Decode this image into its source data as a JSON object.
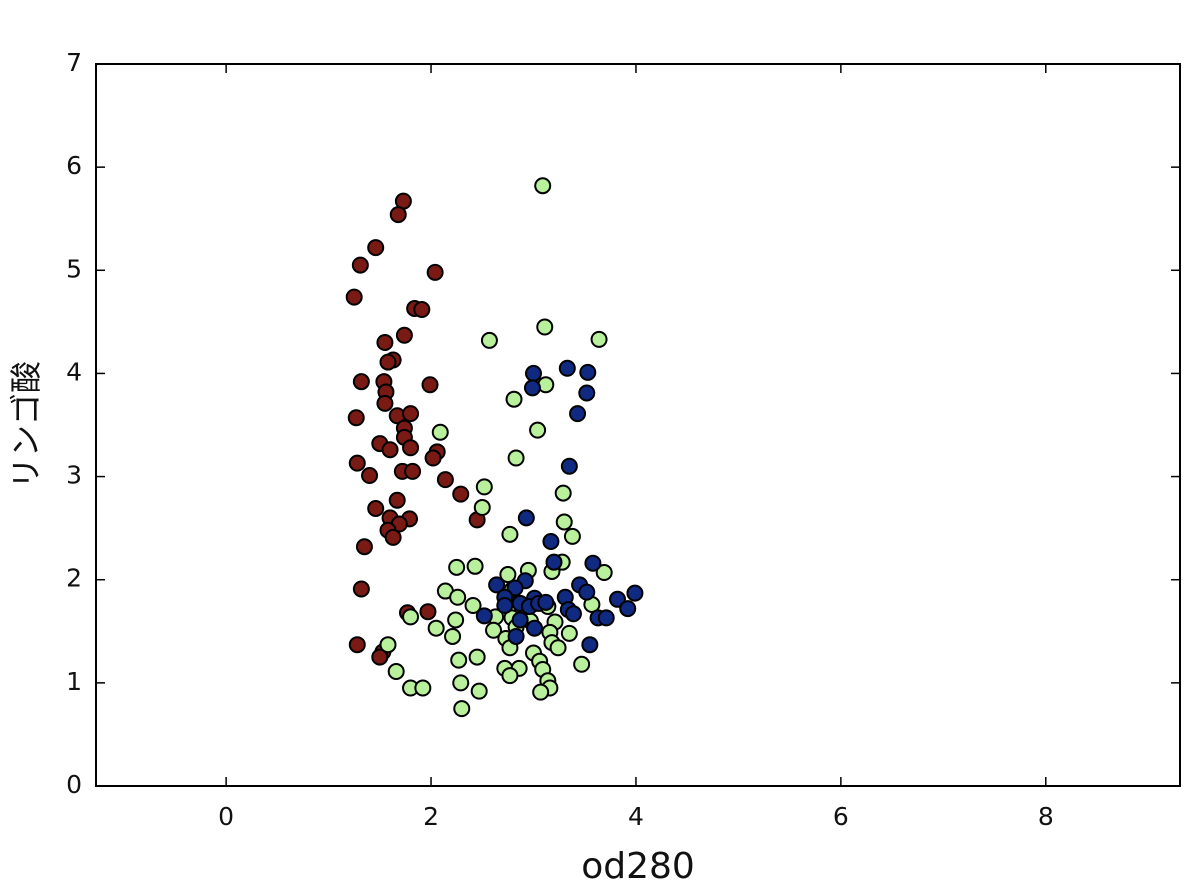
{
  "chart_data": {
    "type": "scatter",
    "xlabel": "od280",
    "ylabel": "リンゴ酸",
    "xlim": [
      -1.27,
      9.31
    ],
    "ylim": [
      0,
      7
    ],
    "xticks": [
      0,
      2,
      4,
      6,
      8
    ],
    "yticks": [
      0,
      1,
      2,
      3,
      4,
      5,
      6,
      7
    ],
    "grid": false,
    "series": [
      {
        "color": "#7a1a14",
        "x": [
          1.73,
          1.68,
          1.46,
          1.31,
          2.04,
          1.25,
          1.84,
          1.91,
          1.55,
          1.74,
          1.63,
          1.58,
          1.32,
          1.54,
          1.99,
          1.56,
          1.55,
          1.27,
          1.67,
          1.8,
          1.74,
          1.74,
          1.5,
          1.6,
          1.8,
          2.06,
          1.28,
          2.02,
          1.72,
          1.82,
          1.4,
          2.14,
          2.29,
          1.67,
          1.46,
          1.6,
          1.79,
          2.45,
          1.69,
          1.58,
          1.63,
          1.35,
          1.32,
          1.77,
          1.97,
          1.28,
          1.53,
          1.5
        ],
        "values": [
          5.67,
          5.54,
          5.22,
          5.05,
          4.98,
          4.74,
          4.63,
          4.62,
          4.3,
          4.37,
          4.13,
          4.11,
          3.92,
          3.92,
          3.89,
          3.82,
          3.71,
          3.57,
          3.59,
          3.61,
          3.47,
          3.38,
          3.32,
          3.26,
          3.28,
          3.24,
          3.13,
          3.18,
          3.05,
          3.05,
          3.01,
          2.97,
          2.83,
          2.77,
          2.69,
          2.6,
          2.59,
          2.58,
          2.54,
          2.48,
          2.41,
          2.32,
          1.91,
          1.68,
          1.69,
          1.37,
          1.3,
          1.25
        ]
      },
      {
        "color": "#b8f09c",
        "x": [
          3.09,
          3.11,
          2.57,
          3.64,
          3.12,
          2.81,
          2.09,
          3.04,
          2.83,
          2.52,
          3.29,
          2.5,
          3.3,
          3.38,
          2.77,
          3.28,
          2.25,
          2.43,
          3.69,
          3.18,
          2.75,
          2.95,
          2.14,
          2.26,
          2.79,
          2.41,
          3.57,
          3.14,
          1.8,
          2.24,
          2.63,
          2.79,
          2.97,
          3.21,
          2.05,
          2.61,
          2.83,
          3.16,
          2.21,
          2.73,
          3.35,
          3.18,
          3.24,
          1.58,
          2.77,
          3.0,
          3.06,
          2.27,
          2.45,
          1.66,
          2.72,
          2.86,
          3.09,
          3.47,
          2.77,
          3.14,
          2.29,
          3.16,
          3.07,
          1.8,
          1.92,
          2.47,
          2.3
        ],
        "values": [
          5.82,
          4.45,
          4.32,
          4.33,
          3.89,
          3.75,
          3.43,
          3.45,
          3.18,
          2.9,
          2.84,
          2.7,
          2.56,
          2.42,
          2.44,
          2.17,
          2.12,
          2.13,
          2.07,
          2.08,
          2.05,
          2.09,
          1.89,
          1.83,
          1.9,
          1.75,
          1.76,
          1.74,
          1.64,
          1.61,
          1.64,
          1.63,
          1.6,
          1.59,
          1.53,
          1.51,
          1.54,
          1.49,
          1.45,
          1.43,
          1.48,
          1.39,
          1.34,
          1.37,
          1.34,
          1.29,
          1.21,
          1.22,
          1.25,
          1.11,
          1.14,
          1.14,
          1.13,
          1.18,
          1.07,
          1.02,
          1.0,
          0.95,
          0.91,
          0.95,
          0.95,
          0.92,
          0.75
        ]
      },
      {
        "color": "#0f2a80",
        "x": [
          3.33,
          3.53,
          3.0,
          2.99,
          3.52,
          3.43,
          3.35,
          2.93,
          3.17,
          3.58,
          3.2,
          2.64,
          2.92,
          2.82,
          3.45,
          3.52,
          3.99,
          2.72,
          3.01,
          3.31,
          3.82,
          2.87,
          2.96,
          3.05,
          3.12,
          2.72,
          3.34,
          3.92,
          2.52,
          2.87,
          3.39,
          3.63,
          3.71,
          3.01,
          2.83,
          3.55
        ],
        "values": [
          4.05,
          4.01,
          4.0,
          3.86,
          3.81,
          3.61,
          3.1,
          2.6,
          2.37,
          2.16,
          2.17,
          1.95,
          1.99,
          1.92,
          1.95,
          1.88,
          1.87,
          1.83,
          1.82,
          1.83,
          1.81,
          1.77,
          1.74,
          1.77,
          1.78,
          1.75,
          1.71,
          1.72,
          1.65,
          1.61,
          1.67,
          1.63,
          1.63,
          1.53,
          1.45,
          1.37
        ]
      }
    ]
  }
}
